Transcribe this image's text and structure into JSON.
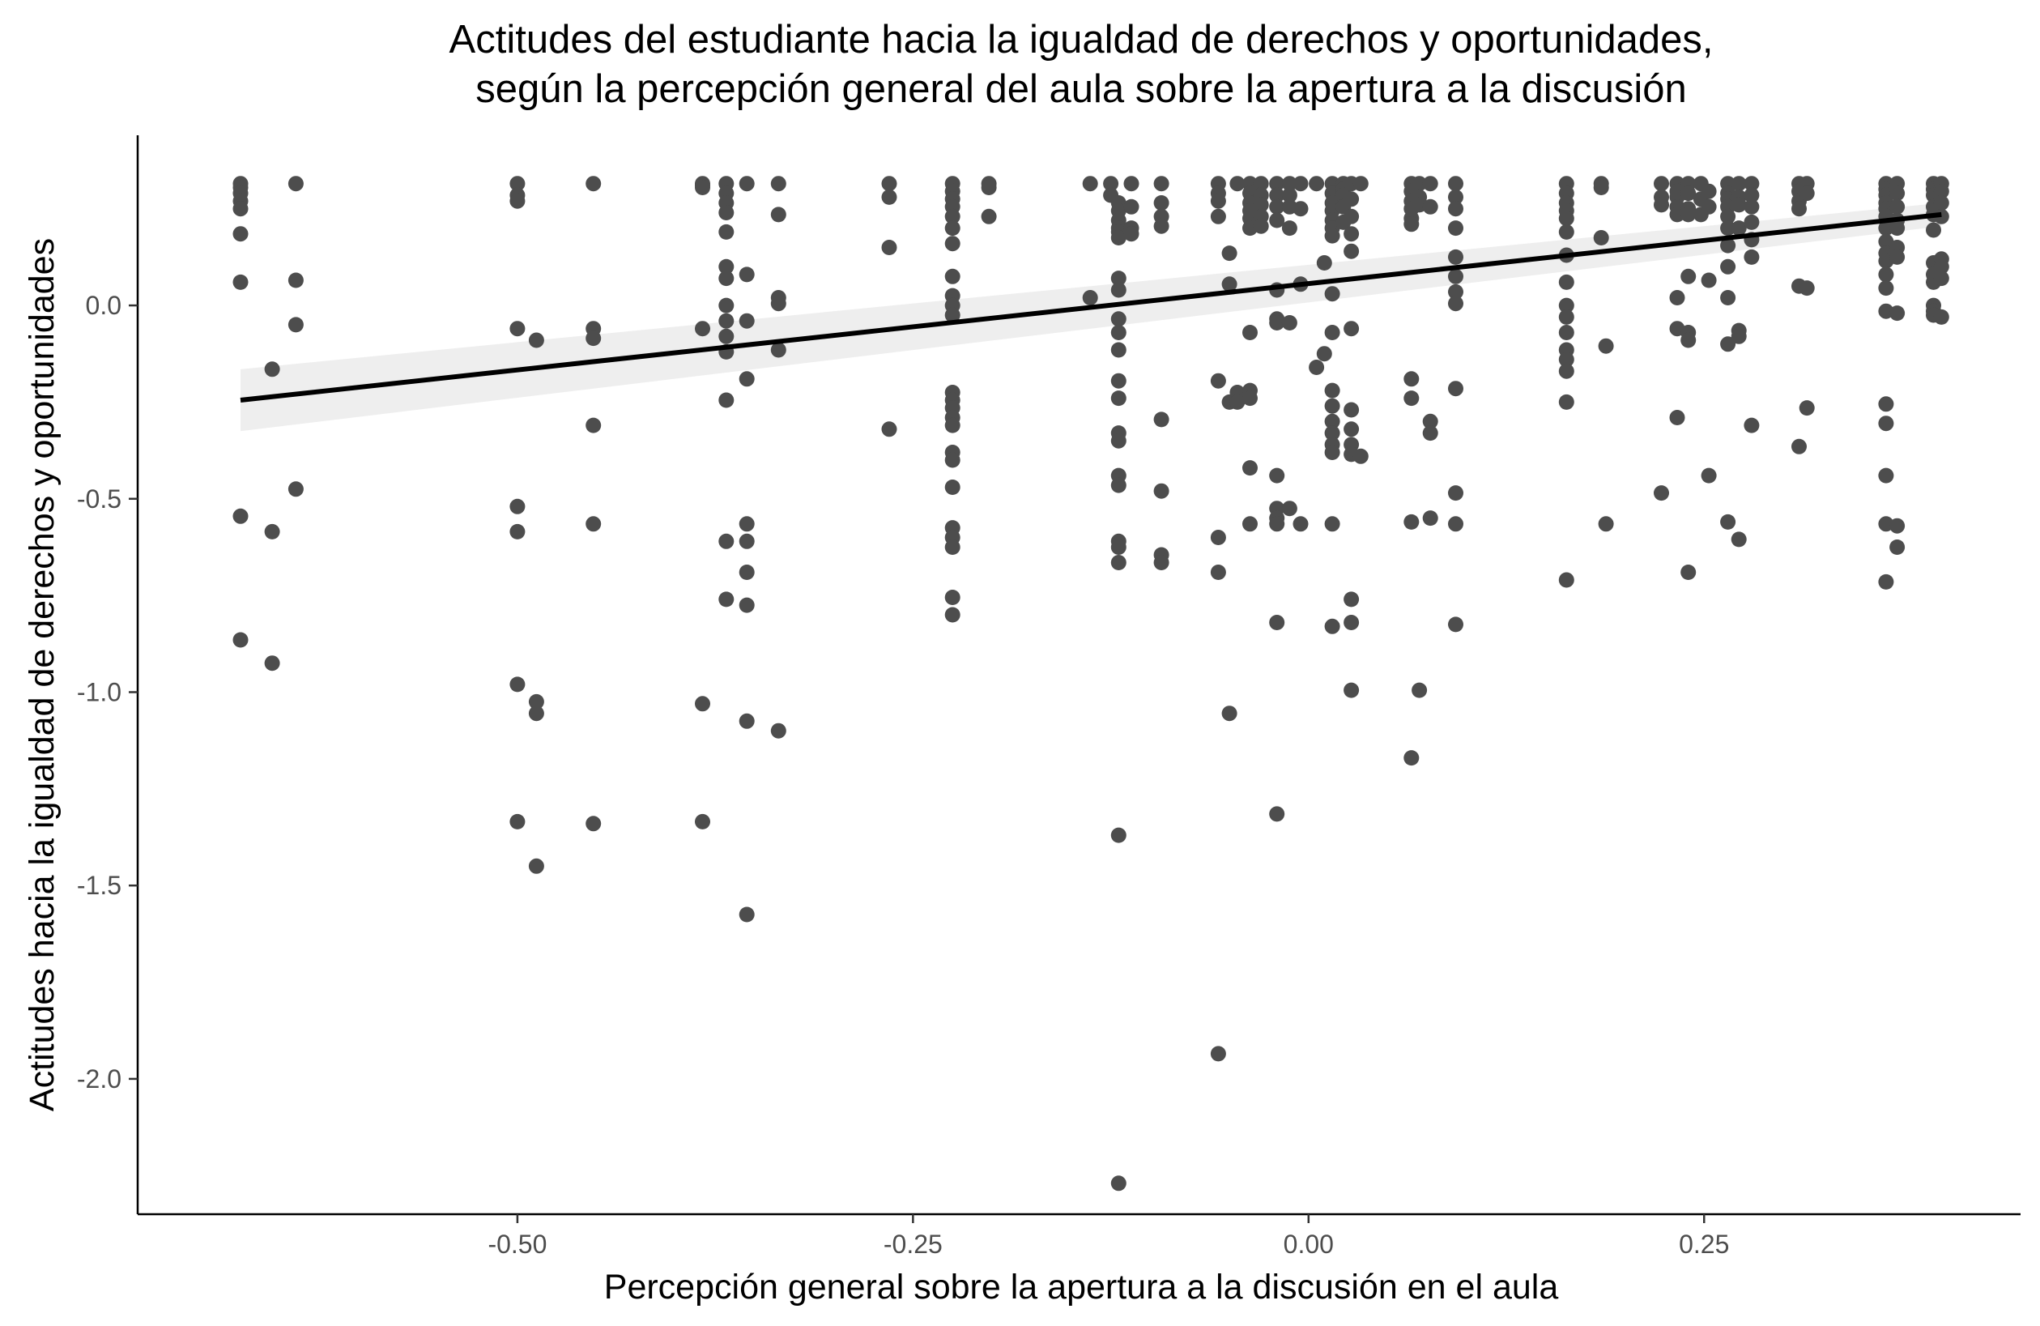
{
  "chart_data": {
    "type": "scatter",
    "title": [
      "Actitudes del estudiante hacia la igualdad de derechos y oportunidades,",
      "según la percepción general del aula sobre la apertura a la discusión"
    ],
    "xlabel": "Percepción general sobre la apertura a la discusión en el aula",
    "ylabel": "Actitudes hacia la igualdad de derechos y oportunidades",
    "xlim": [
      -0.74,
      0.45
    ],
    "ylim": [
      -2.35,
      0.44
    ],
    "x_ticks": [
      -0.5,
      -0.25,
      0.0,
      0.25
    ],
    "x_tick_labels": [
      "-0.50",
      "-0.25",
      "0.00",
      "0.25"
    ],
    "y_ticks": [
      0.0,
      -0.5,
      -1.0,
      -1.5,
      -2.0
    ],
    "y_tick_labels": [
      "0.0",
      "-0.5",
      "-1.0",
      "-1.5",
      "-2.0"
    ],
    "grid": false,
    "colors": {
      "points": "#4d4d4d",
      "line": "#000000",
      "band": "#ebebeb",
      "axis": "#000000"
    },
    "regression": {
      "method": "linear",
      "x": [
        -0.675,
        0.4
      ],
      "y": [
        -0.245,
        0.235
      ],
      "ci_lower": [
        -0.325,
        0.205
      ],
      "ci_upper": [
        -0.165,
        0.265
      ]
    },
    "points": [
      [
        -0.675,
        0.315
      ],
      [
        -0.675,
        0.305
      ],
      [
        -0.675,
        0.29
      ],
      [
        -0.675,
        0.27
      ],
      [
        -0.675,
        0.25
      ],
      [
        -0.675,
        0.185
      ],
      [
        -0.675,
        0.06
      ],
      [
        -0.675,
        -0.545
      ],
      [
        -0.675,
        -0.865
      ],
      [
        -0.655,
        -0.165
      ],
      [
        -0.655,
        -0.585
      ],
      [
        -0.655,
        -0.925
      ],
      [
        -0.64,
        0.315
      ],
      [
        -0.64,
        0.065
      ],
      [
        -0.64,
        -0.05
      ],
      [
        -0.64,
        -0.475
      ],
      [
        -0.5,
        0.315
      ],
      [
        -0.5,
        0.285
      ],
      [
        -0.5,
        0.27
      ],
      [
        -0.5,
        -0.06
      ],
      [
        -0.5,
        -0.52
      ],
      [
        -0.5,
        -0.585
      ],
      [
        -0.5,
        -0.98
      ],
      [
        -0.5,
        -1.335
      ],
      [
        -0.488,
        -0.09
      ],
      [
        -0.488,
        -1.025
      ],
      [
        -0.488,
        -1.055
      ],
      [
        -0.488,
        -1.45
      ],
      [
        -0.452,
        0.315
      ],
      [
        -0.452,
        -0.06
      ],
      [
        -0.452,
        -0.085
      ],
      [
        -0.452,
        -0.31
      ],
      [
        -0.452,
        -0.565
      ],
      [
        -0.452,
        -1.34
      ],
      [
        -0.383,
        0.315
      ],
      [
        -0.383,
        0.31
      ],
      [
        -0.383,
        0.305
      ],
      [
        -0.383,
        -0.06
      ],
      [
        -0.383,
        -1.03
      ],
      [
        -0.383,
        -1.335
      ],
      [
        -0.368,
        0.315
      ],
      [
        -0.368,
        0.29
      ],
      [
        -0.368,
        0.265
      ],
      [
        -0.368,
        0.24
      ],
      [
        -0.368,
        0.19
      ],
      [
        -0.368,
        0.1
      ],
      [
        -0.368,
        0.07
      ],
      [
        -0.368,
        0.0
      ],
      [
        -0.368,
        -0.04
      ],
      [
        -0.368,
        -0.08
      ],
      [
        -0.368,
        -0.12
      ],
      [
        -0.368,
        -0.245
      ],
      [
        -0.368,
        -0.61
      ],
      [
        -0.368,
        -0.76
      ],
      [
        -0.355,
        0.315
      ],
      [
        -0.355,
        0.08
      ],
      [
        -0.355,
        -0.04
      ],
      [
        -0.355,
        -0.19
      ],
      [
        -0.355,
        -0.565
      ],
      [
        -0.355,
        -0.61
      ],
      [
        -0.355,
        -0.69
      ],
      [
        -0.355,
        -0.775
      ],
      [
        -0.355,
        -1.075
      ],
      [
        -0.355,
        -1.575
      ],
      [
        -0.335,
        0.315
      ],
      [
        -0.335,
        0.235
      ],
      [
        -0.335,
        0.02
      ],
      [
        -0.335,
        0.005
      ],
      [
        -0.335,
        -0.115
      ],
      [
        -0.335,
        -1.1
      ],
      [
        -0.265,
        0.315
      ],
      [
        -0.265,
        0.28
      ],
      [
        -0.265,
        0.15
      ],
      [
        -0.265,
        -0.32
      ],
      [
        -0.225,
        0.315
      ],
      [
        -0.225,
        0.295
      ],
      [
        -0.225,
        0.275
      ],
      [
        -0.225,
        0.255
      ],
      [
        -0.225,
        0.23
      ],
      [
        -0.225,
        0.2
      ],
      [
        -0.225,
        0.16
      ],
      [
        -0.225,
        0.075
      ],
      [
        -0.225,
        0.025
      ],
      [
        -0.225,
        0.0
      ],
      [
        -0.225,
        -0.025
      ],
      [
        -0.225,
        -0.225
      ],
      [
        -0.225,
        -0.245
      ],
      [
        -0.225,
        -0.265
      ],
      [
        -0.225,
        -0.29
      ],
      [
        -0.225,
        -0.31
      ],
      [
        -0.225,
        -0.38
      ],
      [
        -0.225,
        -0.4
      ],
      [
        -0.225,
        -0.47
      ],
      [
        -0.225,
        -0.575
      ],
      [
        -0.225,
        -0.6
      ],
      [
        -0.225,
        -0.625
      ],
      [
        -0.225,
        -0.755
      ],
      [
        -0.225,
        -0.8
      ],
      [
        -0.202,
        0.315
      ],
      [
        -0.202,
        0.305
      ],
      [
        -0.202,
        0.23
      ],
      [
        -0.138,
        0.315
      ],
      [
        -0.138,
        0.02
      ],
      [
        -0.125,
        0.315
      ],
      [
        -0.125,
        0.285
      ],
      [
        -0.12,
        0.265
      ],
      [
        -0.12,
        0.245
      ],
      [
        -0.12,
        0.22
      ],
      [
        -0.12,
        0.2
      ],
      [
        -0.12,
        0.19
      ],
      [
        -0.12,
        0.175
      ],
      [
        -0.12,
        0.07
      ],
      [
        -0.12,
        0.04
      ],
      [
        -0.12,
        -0.035
      ],
      [
        -0.12,
        -0.07
      ],
      [
        -0.12,
        -0.115
      ],
      [
        -0.12,
        -0.195
      ],
      [
        -0.12,
        -0.24
      ],
      [
        -0.12,
        -0.33
      ],
      [
        -0.12,
        -0.35
      ],
      [
        -0.12,
        -0.44
      ],
      [
        -0.12,
        -0.465
      ],
      [
        -0.12,
        -0.61
      ],
      [
        -0.12,
        -0.625
      ],
      [
        -0.12,
        -0.665
      ],
      [
        -0.12,
        -1.37
      ],
      [
        -0.12,
        -2.27
      ],
      [
        -0.112,
        0.315
      ],
      [
        -0.112,
        0.255
      ],
      [
        -0.112,
        0.2
      ],
      [
        -0.112,
        0.185
      ],
      [
        -0.093,
        0.315
      ],
      [
        -0.093,
        0.265
      ],
      [
        -0.093,
        0.23
      ],
      [
        -0.093,
        0.205
      ],
      [
        -0.093,
        -0.295
      ],
      [
        -0.093,
        -0.48
      ],
      [
        -0.093,
        -0.645
      ],
      [
        -0.093,
        -0.665
      ],
      [
        -0.057,
        0.315
      ],
      [
        -0.057,
        0.29
      ],
      [
        -0.057,
        0.27
      ],
      [
        -0.057,
        0.23
      ],
      [
        -0.057,
        -0.195
      ],
      [
        -0.057,
        -0.6
      ],
      [
        -0.057,
        -0.69
      ],
      [
        -0.057,
        -1.935
      ],
      [
        -0.05,
        0.135
      ],
      [
        -0.05,
        0.055
      ],
      [
        -0.05,
        -0.25
      ],
      [
        -0.05,
        -1.055
      ],
      [
        -0.045,
        0.315
      ],
      [
        -0.045,
        -0.225
      ],
      [
        -0.045,
        -0.25
      ],
      [
        -0.037,
        0.315
      ],
      [
        -0.037,
        0.29
      ],
      [
        -0.037,
        0.265
      ],
      [
        -0.037,
        0.245
      ],
      [
        -0.037,
        0.225
      ],
      [
        -0.037,
        0.2
      ],
      [
        -0.037,
        -0.07
      ],
      [
        -0.037,
        -0.22
      ],
      [
        -0.037,
        -0.24
      ],
      [
        -0.037,
        -0.42
      ],
      [
        -0.037,
        -0.565
      ],
      [
        -0.03,
        0.315
      ],
      [
        -0.03,
        0.285
      ],
      [
        -0.03,
        0.26
      ],
      [
        -0.03,
        0.23
      ],
      [
        -0.03,
        0.205
      ],
      [
        -0.02,
        0.315
      ],
      [
        -0.02,
        0.285
      ],
      [
        -0.02,
        0.255
      ],
      [
        -0.02,
        0.22
      ],
      [
        -0.02,
        0.04
      ],
      [
        -0.02,
        -0.035
      ],
      [
        -0.02,
        -0.045
      ],
      [
        -0.02,
        -0.44
      ],
      [
        -0.02,
        -0.525
      ],
      [
        -0.02,
        -0.55
      ],
      [
        -0.02,
        -0.565
      ],
      [
        -0.02,
        -0.82
      ],
      [
        -0.02,
        -1.315
      ],
      [
        -0.012,
        0.315
      ],
      [
        -0.012,
        0.285
      ],
      [
        -0.012,
        0.255
      ],
      [
        -0.012,
        0.2
      ],
      [
        -0.012,
        -0.045
      ],
      [
        -0.012,
        -0.525
      ],
      [
        -0.005,
        0.315
      ],
      [
        -0.005,
        0.25
      ],
      [
        -0.005,
        0.055
      ],
      [
        -0.005,
        -0.565
      ],
      [
        0.005,
        0.315
      ],
      [
        0.005,
        -0.16
      ],
      [
        0.01,
        0.11
      ],
      [
        0.01,
        -0.125
      ],
      [
        0.015,
        0.315
      ],
      [
        0.015,
        0.29
      ],
      [
        0.015,
        0.265
      ],
      [
        0.015,
        0.245
      ],
      [
        0.015,
        0.22
      ],
      [
        0.015,
        0.2
      ],
      [
        0.015,
        0.18
      ],
      [
        0.015,
        0.03
      ],
      [
        0.015,
        -0.07
      ],
      [
        0.015,
        -0.22
      ],
      [
        0.015,
        -0.26
      ],
      [
        0.015,
        -0.3
      ],
      [
        0.015,
        -0.33
      ],
      [
        0.015,
        -0.36
      ],
      [
        0.015,
        -0.38
      ],
      [
        0.015,
        -0.565
      ],
      [
        0.015,
        -0.83
      ],
      [
        0.022,
        0.315
      ],
      [
        0.022,
        0.3
      ],
      [
        0.022,
        0.285
      ],
      [
        0.022,
        0.255
      ],
      [
        0.022,
        0.215
      ],
      [
        0.027,
        0.315
      ],
      [
        0.027,
        0.275
      ],
      [
        0.027,
        0.23
      ],
      [
        0.027,
        0.185
      ],
      [
        0.027,
        0.14
      ],
      [
        0.027,
        -0.06
      ],
      [
        0.027,
        -0.27
      ],
      [
        0.027,
        -0.32
      ],
      [
        0.027,
        -0.36
      ],
      [
        0.027,
        -0.385
      ],
      [
        0.027,
        -0.76
      ],
      [
        0.027,
        -0.82
      ],
      [
        0.027,
        -0.995
      ],
      [
        0.033,
        0.315
      ],
      [
        0.033,
        -0.39
      ],
      [
        0.065,
        0.315
      ],
      [
        0.065,
        0.295
      ],
      [
        0.065,
        0.27
      ],
      [
        0.065,
        0.25
      ],
      [
        0.065,
        0.225
      ],
      [
        0.065,
        0.21
      ],
      [
        0.065,
        -0.19
      ],
      [
        0.065,
        -0.24
      ],
      [
        0.065,
        -0.56
      ],
      [
        0.065,
        -1.17
      ],
      [
        0.07,
        0.315
      ],
      [
        0.07,
        0.28
      ],
      [
        0.07,
        0.26
      ],
      [
        0.07,
        -0.995
      ],
      [
        0.077,
        0.315
      ],
      [
        0.077,
        0.255
      ],
      [
        0.077,
        -0.3
      ],
      [
        0.077,
        -0.33
      ],
      [
        0.077,
        -0.55
      ],
      [
        0.093,
        0.315
      ],
      [
        0.093,
        0.28
      ],
      [
        0.093,
        0.25
      ],
      [
        0.093,
        0.2
      ],
      [
        0.093,
        0.125
      ],
      [
        0.093,
        0.075
      ],
      [
        0.093,
        0.035
      ],
      [
        0.093,
        0.005
      ],
      [
        0.093,
        -0.215
      ],
      [
        0.093,
        -0.485
      ],
      [
        0.093,
        -0.565
      ],
      [
        0.093,
        -0.825
      ],
      [
        0.163,
        0.315
      ],
      [
        0.163,
        0.29
      ],
      [
        0.163,
        0.265
      ],
      [
        0.163,
        0.245
      ],
      [
        0.163,
        0.225
      ],
      [
        0.163,
        0.19
      ],
      [
        0.163,
        0.13
      ],
      [
        0.163,
        0.06
      ],
      [
        0.163,
        0.0
      ],
      [
        0.163,
        -0.03
      ],
      [
        0.163,
        -0.07
      ],
      [
        0.163,
        -0.115
      ],
      [
        0.163,
        -0.14
      ],
      [
        0.163,
        -0.17
      ],
      [
        0.163,
        -0.25
      ],
      [
        0.163,
        -0.71
      ],
      [
        0.185,
        0.315
      ],
      [
        0.185,
        0.305
      ],
      [
        0.185,
        0.175
      ],
      [
        0.188,
        -0.105
      ],
      [
        0.188,
        -0.565
      ],
      [
        0.223,
        0.315
      ],
      [
        0.223,
        0.28
      ],
      [
        0.223,
        0.26
      ],
      [
        0.223,
        -0.485
      ],
      [
        0.233,
        0.315
      ],
      [
        0.233,
        0.295
      ],
      [
        0.233,
        0.28
      ],
      [
        0.233,
        0.255
      ],
      [
        0.233,
        0.235
      ],
      [
        0.233,
        0.02
      ],
      [
        0.233,
        -0.06
      ],
      [
        0.233,
        -0.29
      ],
      [
        0.24,
        0.315
      ],
      [
        0.24,
        0.29
      ],
      [
        0.24,
        0.25
      ],
      [
        0.24,
        0.235
      ],
      [
        0.24,
        0.075
      ],
      [
        0.24,
        -0.07
      ],
      [
        0.24,
        -0.09
      ],
      [
        0.24,
        -0.69
      ],
      [
        0.248,
        0.315
      ],
      [
        0.248,
        0.275
      ],
      [
        0.248,
        0.235
      ],
      [
        0.253,
        0.295
      ],
      [
        0.253,
        0.255
      ],
      [
        0.253,
        0.065
      ],
      [
        0.253,
        -0.44
      ],
      [
        0.265,
        0.315
      ],
      [
        0.265,
        0.29
      ],
      [
        0.265,
        0.275
      ],
      [
        0.265,
        0.255
      ],
      [
        0.265,
        0.23
      ],
      [
        0.265,
        0.2
      ],
      [
        0.265,
        0.155
      ],
      [
        0.265,
        0.1
      ],
      [
        0.265,
        0.02
      ],
      [
        0.265,
        -0.1
      ],
      [
        0.265,
        -0.56
      ],
      [
        0.272,
        0.315
      ],
      [
        0.272,
        0.28
      ],
      [
        0.272,
        0.26
      ],
      [
        0.272,
        0.2
      ],
      [
        0.272,
        -0.065
      ],
      [
        0.272,
        -0.08
      ],
      [
        0.272,
        -0.605
      ],
      [
        0.28,
        0.315
      ],
      [
        0.28,
        0.285
      ],
      [
        0.28,
        0.255
      ],
      [
        0.28,
        0.215
      ],
      [
        0.28,
        0.17
      ],
      [
        0.28,
        0.125
      ],
      [
        0.28,
        -0.31
      ],
      [
        0.31,
        0.315
      ],
      [
        0.31,
        0.295
      ],
      [
        0.31,
        0.27
      ],
      [
        0.31,
        0.25
      ],
      [
        0.31,
        0.05
      ],
      [
        0.31,
        -0.365
      ],
      [
        0.315,
        0.315
      ],
      [
        0.315,
        0.29
      ],
      [
        0.315,
        0.045
      ],
      [
        0.315,
        -0.265
      ],
      [
        0.365,
        0.315
      ],
      [
        0.365,
        0.3
      ],
      [
        0.365,
        0.285
      ],
      [
        0.365,
        0.265
      ],
      [
        0.365,
        0.25
      ],
      [
        0.365,
        0.23
      ],
      [
        0.365,
        0.2
      ],
      [
        0.365,
        0.165
      ],
      [
        0.365,
        0.135
      ],
      [
        0.365,
        0.115
      ],
      [
        0.365,
        0.08
      ],
      [
        0.365,
        0.045
      ],
      [
        0.365,
        -0.015
      ],
      [
        0.365,
        -0.255
      ],
      [
        0.365,
        -0.305
      ],
      [
        0.365,
        -0.44
      ],
      [
        0.365,
        -0.565
      ],
      [
        0.365,
        -0.715
      ],
      [
        0.372,
        0.315
      ],
      [
        0.372,
        0.29
      ],
      [
        0.372,
        0.255
      ],
      [
        0.372,
        0.22
      ],
      [
        0.372,
        0.2
      ],
      [
        0.372,
        0.15
      ],
      [
        0.372,
        0.125
      ],
      [
        0.372,
        -0.02
      ],
      [
        0.372,
        -0.57
      ],
      [
        0.372,
        -0.625
      ],
      [
        0.395,
        0.315
      ],
      [
        0.395,
        0.3
      ],
      [
        0.395,
        0.285
      ],
      [
        0.395,
        0.255
      ],
      [
        0.395,
        0.235
      ],
      [
        0.395,
        0.195
      ],
      [
        0.395,
        0.11
      ],
      [
        0.395,
        0.08
      ],
      [
        0.395,
        0.06
      ],
      [
        0.395,
        0.0
      ],
      [
        0.395,
        -0.015
      ],
      [
        0.395,
        -0.025
      ],
      [
        0.4,
        0.315
      ],
      [
        0.4,
        0.295
      ],
      [
        0.4,
        0.265
      ],
      [
        0.4,
        0.23
      ],
      [
        0.4,
        0.12
      ],
      [
        0.4,
        0.1
      ],
      [
        0.4,
        0.07
      ],
      [
        0.4,
        -0.03
      ]
    ]
  }
}
